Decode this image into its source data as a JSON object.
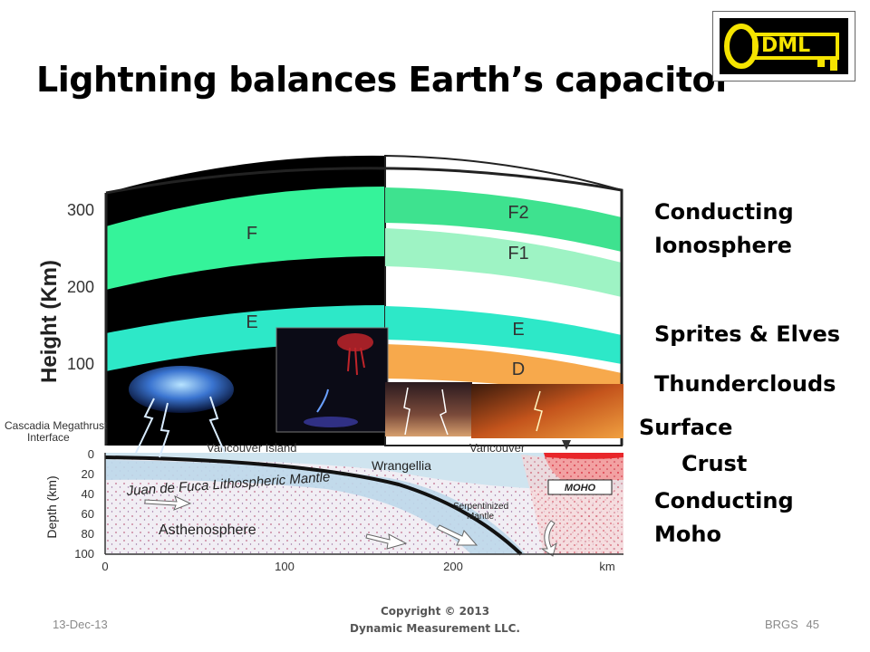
{
  "slide": {
    "title": "Lightning balances Earth’s capacitor",
    "date": "13-Dec-13",
    "footer_right": "BRGS",
    "page_number": "45",
    "copyright_line1": "Copyright © 2013",
    "copyright_line2": "Dynamic Measurement LLC."
  },
  "logo": {
    "text": "DML",
    "icon": "key-icon",
    "color": "#f5e400"
  },
  "diagram": {
    "height_axis_label": "Height (Km)",
    "height_ticks": [
      "300",
      "200",
      "100"
    ],
    "layers_left": {
      "F": "F",
      "E": "E"
    },
    "layers_right": {
      "F2": "F2",
      "F1": "F1",
      "E": "E",
      "D": "D"
    },
    "depth_axis_label": "Depth (km)",
    "depth_ticks": [
      "0",
      "20",
      "40",
      "60",
      "80",
      "100"
    ],
    "distance_ticks": [
      "0",
      "100",
      "200"
    ],
    "distance_unit": "km",
    "cross_section": {
      "cascadia_label_1": "Cascadia Megathrust",
      "cascadia_label_2": "Interface",
      "vancouver_island": "Vancouver Island",
      "vancouver": "Vancouver",
      "wrangellia": "Wrangellia",
      "juan_de_fuca": "Juan de Fuca Lithospheric Mantle",
      "moho": "MOHO",
      "serpentinized_1": "Serpentinized",
      "serpentinized_2": "Mantle",
      "asthenosphere": "Asthenosphere"
    },
    "colors": {
      "f_layer": "#35f39a",
      "f2_layer": "#3ee28f",
      "f1_layer": "#9ef3c4",
      "e_layer": "#2de8c8",
      "d_layer": "#f7a94c",
      "crust_red": "#e8262a"
    }
  },
  "side_labels": {
    "conducting": "Conducting",
    "ionosphere": "Ionosphere",
    "sprites_elves": "Sprites & Elves",
    "thunderclouds": "Thunderclouds",
    "surface": "Surface",
    "crust": "Crust",
    "conducting_2": "Conducting",
    "moho": "Moho"
  }
}
